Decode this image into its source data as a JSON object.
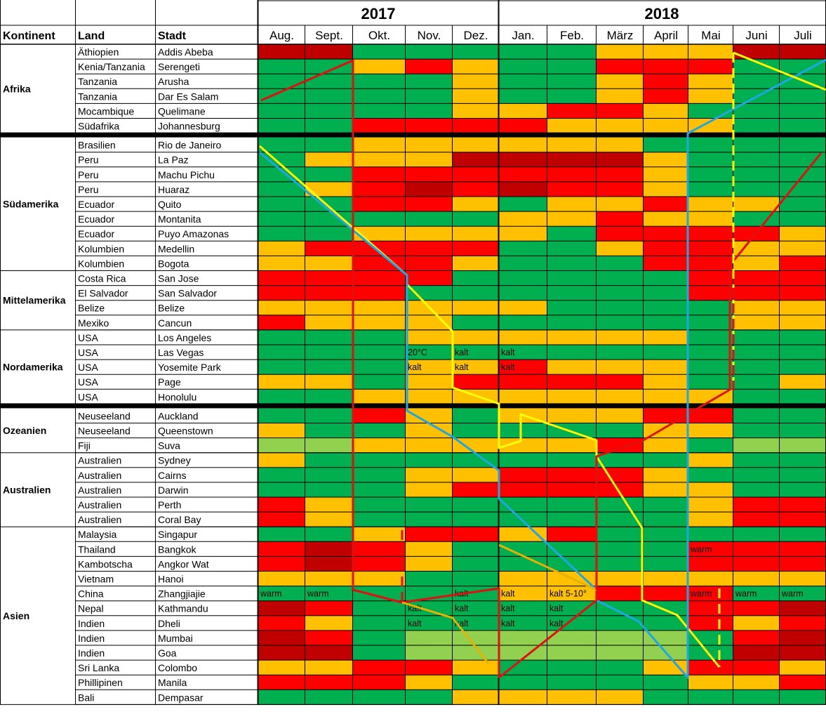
{
  "header": {
    "kontinent": "Kontinent",
    "land": "Land",
    "stadt": "Stadt",
    "years": [
      "2017",
      "2018"
    ],
    "months": [
      "Aug.",
      "Sept.",
      "Okt.",
      "Nov.",
      "Dez.",
      "Jan.",
      "Feb.",
      "März",
      "April",
      "Mai",
      "Juni",
      "Juli"
    ]
  },
  "colors": {
    "G": "#00b050",
    "LG": "#92d050",
    "Y": "#ffc000",
    "R": "#ff0000",
    "DR": "#c00000",
    "W": "#ffffff",
    "route_yellow": "#ffff00",
    "route_blue": "#1ea7e0",
    "route_red": "#e01010",
    "route_orange": "#e6b100",
    "grid": "#000000"
  },
  "groups": [
    {
      "name": "Afrika",
      "rows": [
        {
          "land": "Äthiopien",
          "stadt": "Addis Abeba",
          "cells": [
            "DR",
            "DR",
            "G",
            "G",
            "G",
            "G",
            "G",
            "Y",
            "Y",
            "Y",
            "DR",
            "DR"
          ]
        },
        {
          "land": "Kenia/Tanzania",
          "stadt": "Serengeti",
          "cells": [
            "G",
            "G",
            "Y",
            "R",
            "Y",
            "G",
            "G",
            "R",
            "R",
            "R",
            "G",
            "G"
          ]
        },
        {
          "land": "Tanzania",
          "stadt": "Arusha",
          "cells": [
            "G",
            "G",
            "G",
            "G",
            "Y",
            "G",
            "G",
            "Y",
            "R",
            "Y",
            "G",
            "G"
          ]
        },
        {
          "land": "Tanzania",
          "stadt": "Dar Es Salam",
          "cells": [
            "G",
            "G",
            "G",
            "G",
            "Y",
            "G",
            "G",
            "Y",
            "R",
            "Y",
            "G",
            "G"
          ]
        },
        {
          "land": "Mocambique",
          "stadt": "Quelimane",
          "cells": [
            "G",
            "G",
            "G",
            "G",
            "Y",
            "Y",
            "R",
            "R",
            "Y",
            "G",
            "G",
            "G"
          ]
        },
        {
          "land": "Südafrika",
          "stadt": "Johannesburg",
          "cells": [
            "G",
            "G",
            "R",
            "R",
            "R",
            "R",
            "Y",
            "Y",
            "Y",
            "Y",
            "G",
            "G"
          ]
        }
      ]
    },
    {
      "name": "Südamerika",
      "rows": [
        {
          "land": "Brasilien",
          "stadt": "Rio de Janeiro",
          "cells": [
            "G",
            "G",
            "Y",
            "Y",
            "Y",
            "Y",
            "Y",
            "Y",
            "G",
            "G",
            "G",
            "G"
          ]
        },
        {
          "land": "Peru",
          "stadt": "La Paz",
          "cells": [
            "G",
            "Y",
            "Y",
            "Y",
            "DR",
            "DR",
            "DR",
            "DR",
            "Y",
            "G",
            "G",
            "G"
          ]
        },
        {
          "land": "Peru",
          "stadt": "Machu Pichu",
          "cells": [
            "G",
            "G",
            "R",
            "R",
            "R",
            "R",
            "R",
            "R",
            "Y",
            "G",
            "G",
            "G"
          ]
        },
        {
          "land": "Peru",
          "stadt": "Huaraz",
          "cells": [
            "G",
            "Y",
            "R",
            "DR",
            "R",
            "DR",
            "R",
            "R",
            "Y",
            "G",
            "G",
            "G"
          ]
        },
        {
          "land": "Ecuador",
          "stadt": "Quito",
          "cells": [
            "G",
            "G",
            "R",
            "R",
            "Y",
            "G",
            "Y",
            "Y",
            "R",
            "Y",
            "Y",
            "G"
          ]
        },
        {
          "land": "Ecuador",
          "stadt": "Montanita",
          "cells": [
            "G",
            "G",
            "G",
            "G",
            "G",
            "Y",
            "Y",
            "R",
            "Y",
            "Y",
            "G",
            "G"
          ]
        },
        {
          "land": "Ecuador",
          "stadt": "Puyo Amazonas",
          "cells": [
            "G",
            "G",
            "Y",
            "Y",
            "Y",
            "Y",
            "G",
            "R",
            "R",
            "R",
            "R",
            "Y"
          ]
        },
        {
          "land": "Kolumbien",
          "stadt": "Medellin",
          "cells": [
            "Y",
            "R",
            "R",
            "R",
            "R",
            "G",
            "G",
            "Y",
            "R",
            "R",
            "Y",
            "Y"
          ]
        },
        {
          "land": "Kolumbien",
          "stadt": "Bogota",
          "cells": [
            "Y",
            "Y",
            "R",
            "R",
            "Y",
            "G",
            "G",
            "G",
            "R",
            "R",
            "Y",
            "R"
          ]
        }
      ]
    },
    {
      "name": "Mittelamerika",
      "rows": [
        {
          "land": "Costa Rica",
          "stadt": "San Jose",
          "cells": [
            "R",
            "R",
            "R",
            "R",
            "G",
            "G",
            "G",
            "G",
            "G",
            "R",
            "R",
            "R"
          ]
        },
        {
          "land": "El Salvador",
          "stadt": "San Salvador",
          "cells": [
            "R",
            "R",
            "R",
            "G",
            "G",
            "G",
            "G",
            "G",
            "G",
            "R",
            "R",
            "R"
          ]
        },
        {
          "land": "Belize",
          "stadt": "Belize",
          "cells": [
            "Y",
            "Y",
            "Y",
            "Y",
            "Y",
            "Y",
            "G",
            "G",
            "G",
            "G",
            "Y",
            "Y"
          ]
        },
        {
          "land": "Mexiko",
          "stadt": "Cancun",
          "cells": [
            "R",
            "Y",
            "Y",
            "Y",
            "G",
            "G",
            "G",
            "G",
            "G",
            "G",
            "Y",
            "Y"
          ]
        }
      ]
    },
    {
      "name": "Nordamerika",
      "rows": [
        {
          "land": "USA",
          "stadt": "Los Angeles",
          "cells": [
            "G",
            "G",
            "G",
            "Y",
            "Y",
            "Y",
            "Y",
            "Y",
            "Y",
            "G",
            "G",
            "G"
          ]
        },
        {
          "land": "USA",
          "stadt": "Las Vegas",
          "cells": [
            "G",
            "G",
            "G",
            "G",
            "G",
            "G",
            "G",
            "G",
            "G",
            "G",
            "G",
            "G"
          ]
        },
        {
          "land": "USA",
          "stadt": "Yosemite Park",
          "cells": [
            "G",
            "G",
            "G",
            "Y",
            "Y",
            "R",
            "Y",
            "Y",
            "Y",
            "G",
            "G",
            "G"
          ]
        },
        {
          "land": "USA",
          "stadt": "Page",
          "cells": [
            "Y",
            "Y",
            "G",
            "Y",
            "R",
            "R",
            "R",
            "R",
            "Y",
            "G",
            "G",
            "Y"
          ]
        },
        {
          "land": "USA",
          "stadt": "Honolulu",
          "cells": [
            "G",
            "G",
            "Y",
            "Y",
            "Y",
            "Y",
            "Y",
            "Y",
            "Y",
            "Y",
            "G",
            "G"
          ]
        }
      ]
    },
    {
      "name": "Ozeanien",
      "rows": [
        {
          "land": "Neuseeland",
          "stadt": "Auckland",
          "cells": [
            "G",
            "G",
            "R",
            "Y",
            "G",
            "Y",
            "Y",
            "Y",
            "R",
            "R",
            "G",
            "G"
          ]
        },
        {
          "land": "Neuseeland",
          "stadt": "Queenstown",
          "cells": [
            "Y",
            "G",
            "G",
            "Y",
            "G",
            "G",
            "G",
            "G",
            "Y",
            "Y",
            "G",
            "G"
          ]
        },
        {
          "land": "Fiji",
          "stadt": "Suva",
          "cells": [
            "LG",
            "LG",
            "Y",
            "Y",
            "Y",
            "Y",
            "Y",
            "R",
            "Y",
            "G",
            "LG",
            "LG"
          ]
        }
      ]
    },
    {
      "name": "Australien",
      "rows": [
        {
          "land": "Australien",
          "stadt": "Sydney",
          "cells": [
            "Y",
            "G",
            "G",
            "G",
            "G",
            "G",
            "G",
            "G",
            "G",
            "Y",
            "G",
            "G"
          ]
        },
        {
          "land": "Australien",
          "stadt": "Cairns",
          "cells": [
            "G",
            "G",
            "G",
            "Y",
            "Y",
            "R",
            "R",
            "R",
            "Y",
            "G",
            "G",
            "G"
          ]
        },
        {
          "land": "Australien",
          "stadt": "Darwin",
          "cells": [
            "G",
            "G",
            "G",
            "Y",
            "R",
            "R",
            "R",
            "R",
            "Y",
            "Y",
            "G",
            "G"
          ]
        },
        {
          "land": "Australien",
          "stadt": "Perth",
          "cells": [
            "R",
            "Y",
            "G",
            "G",
            "G",
            "G",
            "G",
            "G",
            "G",
            "Y",
            "R",
            "R"
          ]
        },
        {
          "land": "Australien",
          "stadt": "Coral Bay",
          "cells": [
            "R",
            "Y",
            "G",
            "G",
            "G",
            "G",
            "G",
            "G",
            "G",
            "Y",
            "R",
            "R"
          ]
        }
      ]
    },
    {
      "name": "Asien",
      "rows": [
        {
          "land": "Malaysia",
          "stadt": "Singapur",
          "cells": [
            "G",
            "G",
            "Y",
            "R",
            "R",
            "Y",
            "R",
            "G",
            "G",
            "G",
            "G",
            "G"
          ]
        },
        {
          "land": "Thailand",
          "stadt": "Bangkok",
          "cells": [
            "R",
            "DR",
            "R",
            "Y",
            "G",
            "G",
            "G",
            "G",
            "G",
            "R",
            "R",
            "R"
          ]
        },
        {
          "land": "Kambotscha",
          "stadt": "Angkor Wat",
          "cells": [
            "R",
            "DR",
            "R",
            "Y",
            "G",
            "G",
            "G",
            "G",
            "G",
            "R",
            "R",
            "R"
          ]
        },
        {
          "land": "Vietnam",
          "stadt": "Hanoi",
          "cells": [
            "Y",
            "Y",
            "Y",
            "G",
            "G",
            "Y",
            "Y",
            "Y",
            "Y",
            "Y",
            "Y",
            "Y"
          ]
        },
        {
          "land": "China",
          "stadt": "Zhangjiajie",
          "cells": [
            "G",
            "G",
            "G",
            "G",
            "G",
            "Y",
            "Y",
            "R",
            "R",
            "R",
            "G",
            "G"
          ]
        },
        {
          "land": "Nepal",
          "stadt": "Kathmandu",
          "cells": [
            "DR",
            "R",
            "G",
            "G",
            "G",
            "G",
            "G",
            "G",
            "G",
            "R",
            "R",
            "DR"
          ]
        },
        {
          "land": "Indien",
          "stadt": "Dheli",
          "cells": [
            "R",
            "Y",
            "G",
            "G",
            "G",
            "G",
            "G",
            "G",
            "G",
            "R",
            "Y",
            "R"
          ]
        },
        {
          "land": "Indien",
          "stadt": "Mumbai",
          "cells": [
            "DR",
            "R",
            "G",
            "LG",
            "LG",
            "LG",
            "LG",
            "LG",
            "LG",
            "G",
            "R",
            "DR"
          ]
        },
        {
          "land": "Indien",
          "stadt": "Goa",
          "cells": [
            "DR",
            "DR",
            "G",
            "LG",
            "LG",
            "LG",
            "LG",
            "LG",
            "LG",
            "G",
            "DR",
            "DR"
          ]
        },
        {
          "land": "Sri Lanka",
          "stadt": "Colombo",
          "cells": [
            "Y",
            "Y",
            "R",
            "R",
            "Y",
            "G",
            "G",
            "G",
            "Y",
            "R",
            "R",
            "Y"
          ]
        },
        {
          "land": "Phillipinen",
          "stadt": "Manila",
          "cells": [
            "R",
            "R",
            "R",
            "Y",
            "G",
            "G",
            "G",
            "G",
            "G",
            "Y",
            "Y",
            "R"
          ]
        },
        {
          "land": "Bali",
          "stadt": "Dempasar",
          "cells": [
            "G",
            "G",
            "G",
            "G",
            "Y",
            "Y",
            "Y",
            "Y",
            "G",
            "G",
            "G",
            "G"
          ]
        }
      ]
    }
  ],
  "annotations": [
    {
      "row": "Las Vegas",
      "month": "Nov.",
      "text": "20°C"
    },
    {
      "row": "Las Vegas",
      "month": "Dez.",
      "text": "kalt"
    },
    {
      "row": "Las Vegas",
      "month": "Jan.",
      "text": "kalt"
    },
    {
      "row": "Yosemite Park",
      "month": "Nov.",
      "text": "kalt"
    },
    {
      "row": "Yosemite Park",
      "month": "Dez.",
      "text": "kalt"
    },
    {
      "row": "Yosemite Park",
      "month": "Jan.",
      "text": "kalt"
    },
    {
      "row": "Bangkok",
      "month": "Mai",
      "text": "warm"
    },
    {
      "row": "Zhangjiajie",
      "month": "Aug.",
      "text": "warm"
    },
    {
      "row": "Zhangjiajie",
      "month": "Sept.",
      "text": "warm"
    },
    {
      "row": "Zhangjiajie",
      "month": "Dez.",
      "text": "kalt"
    },
    {
      "row": "Zhangjiajie",
      "month": "Jan.",
      "text": "kalt"
    },
    {
      "row": "Zhangjiajie",
      "month": "Feb.",
      "text": "kalt 5-10°"
    },
    {
      "row": "Zhangjiajie",
      "month": "Mai",
      "text": "warm"
    },
    {
      "row": "Zhangjiajie",
      "month": "Juni",
      "text": "warm"
    },
    {
      "row": "Zhangjiajie",
      "month": "Juli",
      "text": "warm"
    },
    {
      "row": "Kathmandu",
      "month": "Nov.",
      "text": "kalt"
    },
    {
      "row": "Kathmandu",
      "month": "Dez.",
      "text": "kalt"
    },
    {
      "row": "Kathmandu",
      "month": "Jan.",
      "text": "kalt"
    },
    {
      "row": "Kathmandu",
      "month": "Feb.",
      "text": "kalt"
    },
    {
      "row": "Dheli",
      "month": "Nov.",
      "text": "kalt"
    },
    {
      "row": "Dheli",
      "month": "Dez.",
      "text": "kalt"
    },
    {
      "row": "Dheli",
      "month": "Jan.",
      "text": "kalt"
    },
    {
      "row": "Dheli",
      "month": "Feb.",
      "text": "kalt"
    }
  ]
}
